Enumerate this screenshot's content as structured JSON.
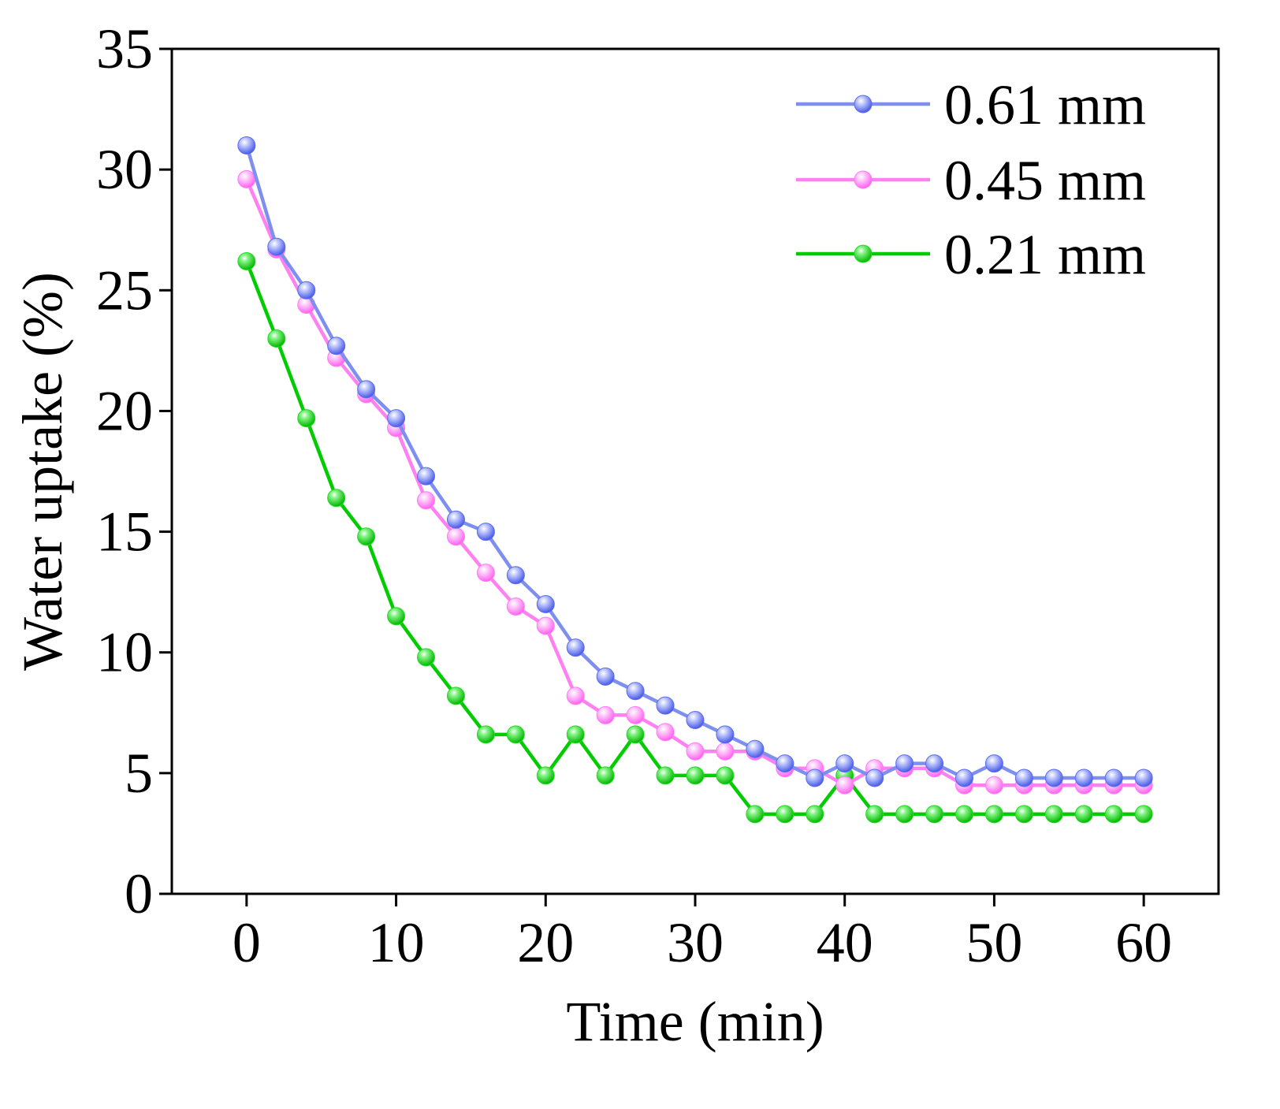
{
  "chart_data": {
    "type": "line",
    "title": "",
    "xlabel": "Time (min)",
    "ylabel": "Water uptake (%)",
    "xlim": [
      -5,
      65
    ],
    "ylim": [
      0,
      35
    ],
    "xticks": [
      0,
      10,
      20,
      30,
      40,
      50,
      60
    ],
    "yticks": [
      0,
      5,
      10,
      15,
      20,
      25,
      30,
      35
    ],
    "grid": false,
    "legend_position": "top-right",
    "x": [
      0,
      2,
      4,
      6,
      8,
      10,
      12,
      14,
      16,
      18,
      20,
      22,
      24,
      26,
      28,
      30,
      32,
      34,
      36,
      38,
      40,
      42,
      44,
      46,
      48,
      50,
      52,
      54,
      56,
      58,
      60
    ],
    "series": [
      {
        "name": "0.61 mm",
        "color": "#7f8ff0",
        "marker_color": "#5a6cf0",
        "values": [
          31.0,
          26.8,
          25.0,
          22.7,
          20.9,
          19.7,
          17.3,
          15.5,
          15.0,
          13.2,
          12.0,
          10.2,
          9.0,
          8.4,
          7.8,
          7.2,
          6.6,
          6.0,
          5.4,
          4.8,
          5.4,
          4.8,
          5.4,
          5.4,
          4.8,
          5.4,
          4.8,
          4.8,
          4.8,
          4.8,
          4.8
        ]
      },
      {
        "name": "0.45 mm",
        "color": "#ff80f0",
        "marker_color": "#ff7cf5",
        "values": [
          29.6,
          26.7,
          24.4,
          22.2,
          20.7,
          19.3,
          16.3,
          14.8,
          13.3,
          11.9,
          11.1,
          8.2,
          7.4,
          7.4,
          6.7,
          5.9,
          5.9,
          5.9,
          5.2,
          5.2,
          4.5,
          5.2,
          5.2,
          5.2,
          4.5,
          4.5,
          4.5,
          4.5,
          4.5,
          4.5,
          4.5
        ]
      },
      {
        "name": "0.21 mm",
        "color": "#00cc00",
        "marker_color": "#22dd22",
        "values": [
          26.2,
          23.0,
          19.7,
          16.4,
          14.8,
          11.5,
          9.8,
          8.2,
          6.6,
          6.6,
          4.9,
          6.6,
          4.9,
          6.6,
          4.9,
          4.9,
          4.9,
          3.3,
          3.3,
          3.3,
          4.9,
          3.3,
          3.3,
          3.3,
          3.3,
          3.3,
          3.3,
          3.3,
          3.3,
          3.3,
          3.3
        ]
      }
    ]
  }
}
